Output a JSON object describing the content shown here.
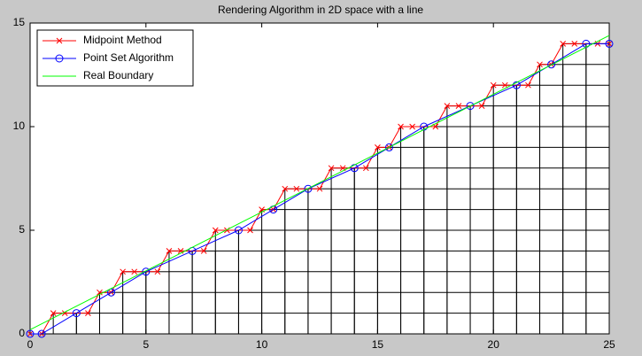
{
  "chart_data": {
    "type": "line",
    "title": "Rendering Algorithm in 2D space with a line",
    "xlim": [
      0,
      25
    ],
    "xticks": [
      0,
      5,
      10,
      15,
      20,
      25
    ],
    "ylim": [
      0,
      15
    ],
    "yticks": [
      0,
      5,
      10,
      15
    ],
    "grid": false,
    "legend": "northwest",
    "pixel_columns": {
      "color": "#000000",
      "heights": [
        0,
        1,
        1,
        2,
        3,
        3,
        4,
        4,
        5,
        5,
        6,
        7,
        7,
        8,
        8,
        9,
        10,
        10,
        11,
        11,
        12,
        12,
        13,
        14,
        14
      ]
    },
    "series": [
      {
        "name": "Midpoint Method",
        "color": "#ff0000",
        "marker": "x",
        "x": [
          0,
          0.5,
          1,
          1.5,
          2.5,
          3,
          3.5,
          4,
          4.5,
          5.5,
          6,
          6.5,
          7.5,
          8,
          8.5,
          9.5,
          10,
          10.5,
          11,
          11.5,
          12.5,
          13,
          13.5,
          14.5,
          15,
          15.5,
          16,
          16.5,
          17.5,
          18,
          18.5,
          19.5,
          20,
          20.5,
          21.5,
          22,
          22.5,
          23,
          23.5,
          24.5,
          25
        ],
        "values": [
          0,
          0,
          1,
          1,
          1,
          2,
          2,
          3,
          3,
          3,
          4,
          4,
          4,
          5,
          5,
          5,
          6,
          6,
          7,
          7,
          7,
          8,
          8,
          8,
          9,
          9,
          10,
          10,
          10,
          11,
          11,
          11,
          12,
          12,
          12,
          13,
          13,
          14,
          14,
          14,
          14
        ]
      },
      {
        "name": "Point Set Algorithm",
        "color": "#0000ff",
        "marker": "o",
        "x": [
          0,
          0.5,
          2,
          3.5,
          5,
          7,
          9,
          10.5,
          12,
          14,
          15.5,
          17,
          19,
          21,
          22.5,
          24,
          25
        ],
        "values": [
          0,
          0,
          1,
          2,
          3,
          4,
          5,
          6,
          7,
          8,
          9,
          10,
          11,
          12,
          13,
          14,
          14
        ]
      },
      {
        "name": "Real Boundary",
        "color": "#00ff00",
        "marker": "none",
        "x": [
          0,
          25
        ],
        "values": [
          0.2,
          14.4
        ]
      }
    ]
  }
}
